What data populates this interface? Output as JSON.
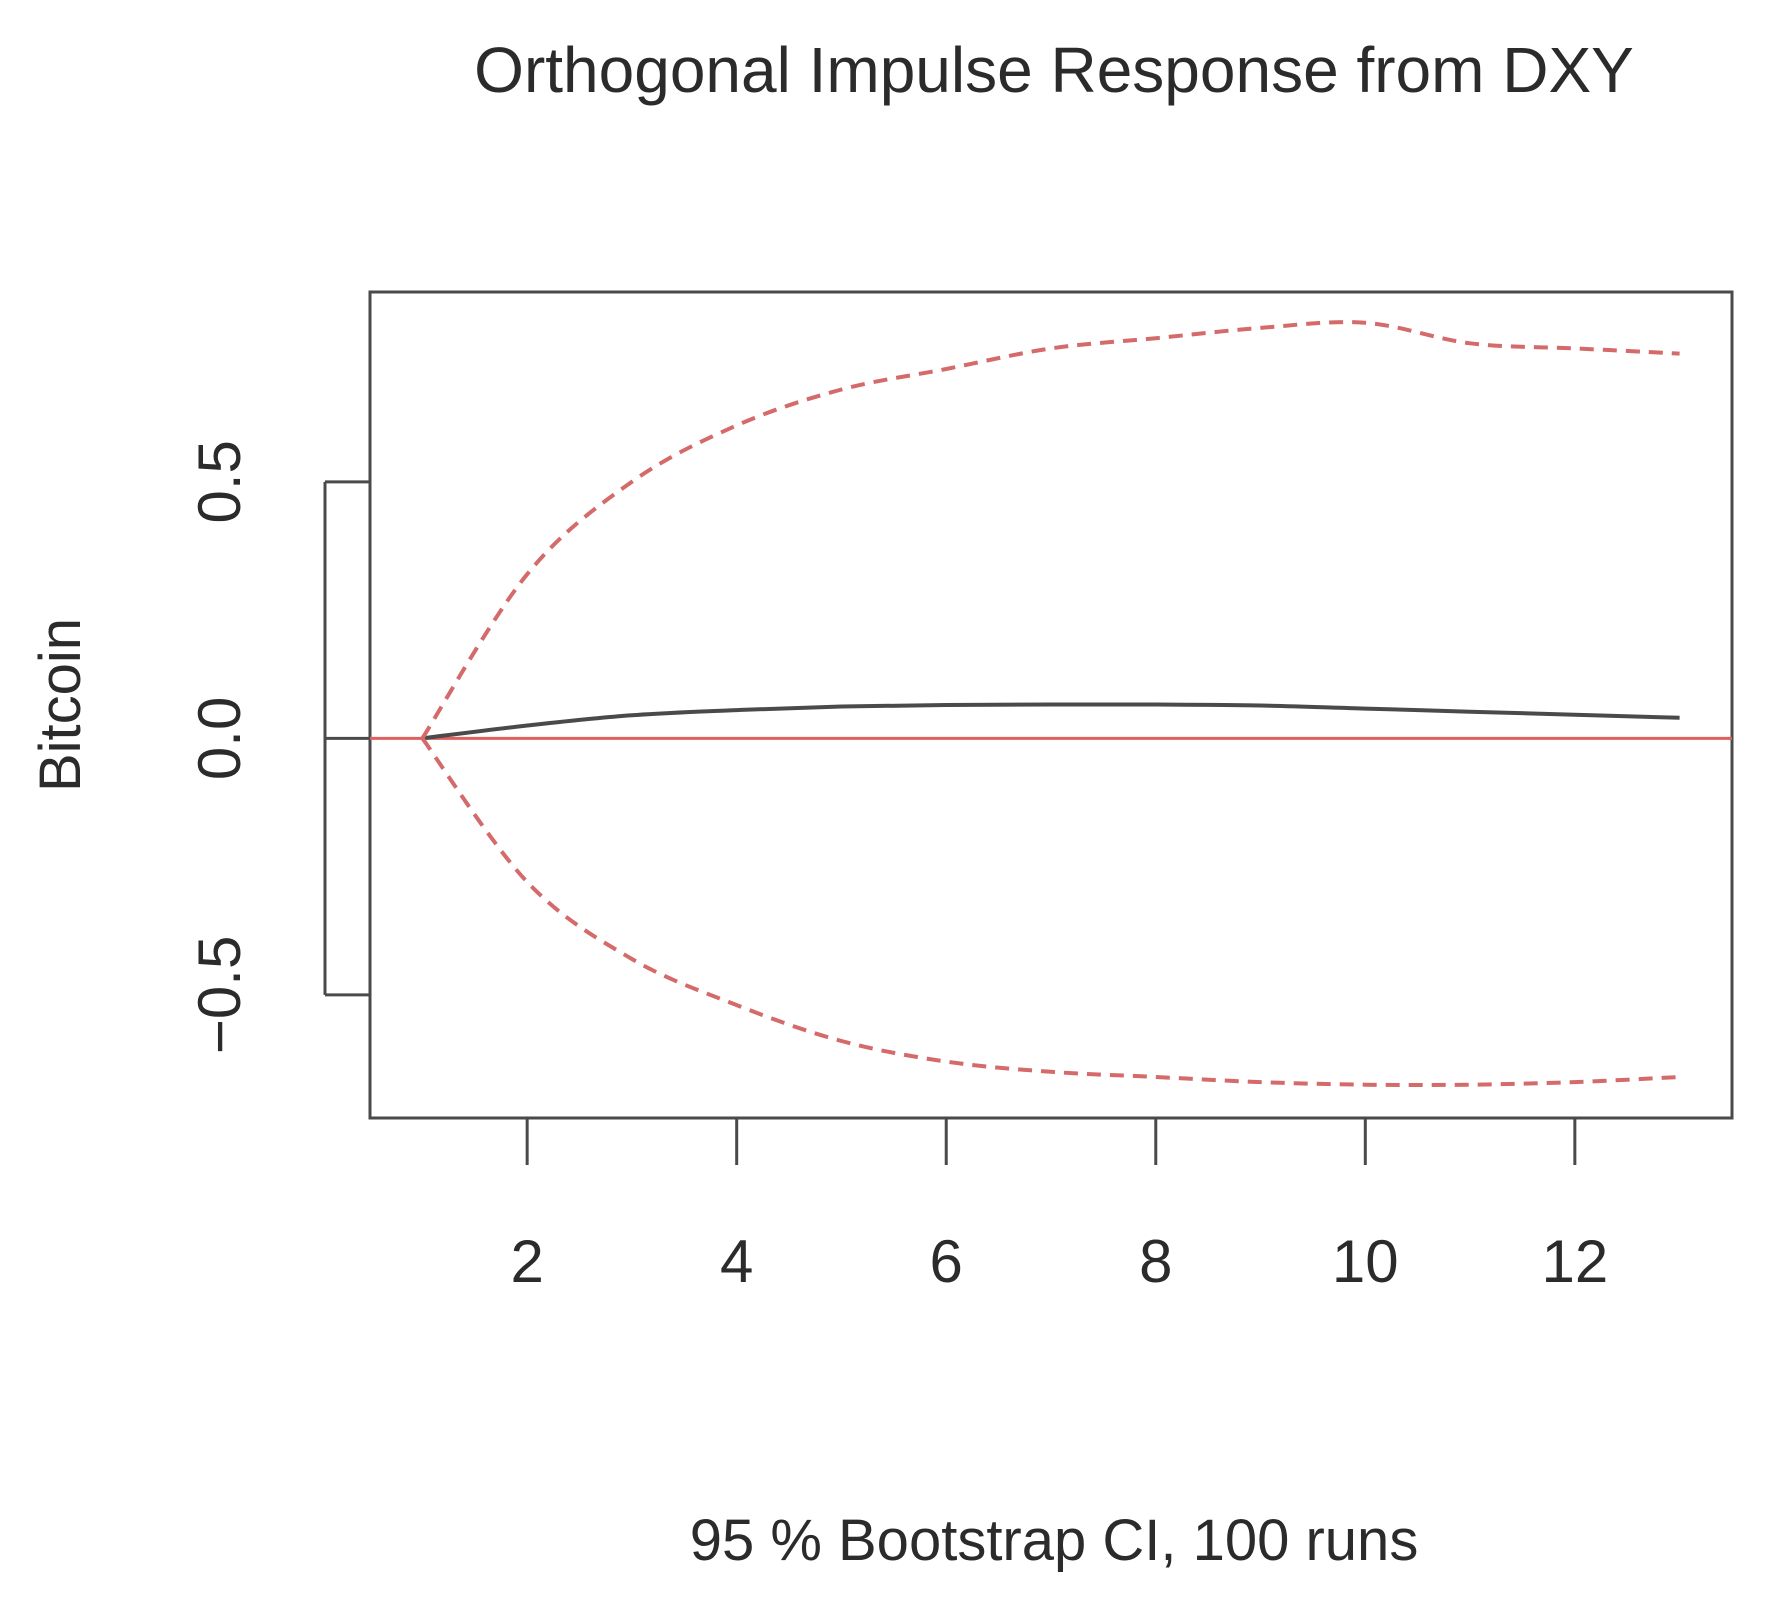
{
  "chart_data": {
    "type": "line",
    "title": "Orthogonal Impulse Response from DXY",
    "xlabel": "95 % Bootstrap CI,  100 runs",
    "ylabel": "Bitcoin",
    "xlim": [
      0.5,
      13.5
    ],
    "ylim": [
      -0.74,
      0.87
    ],
    "x_ticks": [
      2,
      4,
      6,
      8,
      10,
      12
    ],
    "x_tick_labels": [
      "2",
      "4",
      "6",
      "8",
      "10",
      "12"
    ],
    "y_ticks": [
      -0.5,
      0.0,
      0.5
    ],
    "y_tick_labels": [
      "−0.5",
      "0.0",
      "0.5"
    ],
    "grid": false,
    "x": [
      1,
      2,
      3,
      4,
      5,
      6,
      7,
      8,
      9,
      10,
      11,
      12,
      13
    ],
    "series": [
      {
        "name": "",
        "style": "solid",
        "color": "#4a4a4a",
        "values": [
          0.0,
          0.025,
          0.045,
          0.055,
          0.062,
          0.065,
          0.066,
          0.066,
          0.064,
          0.058,
          0.052,
          0.046,
          0.04
        ]
      },
      {
        "name": "",
        "style": "dashed",
        "color": "#d46a6a",
        "values": [
          0.0,
          0.32,
          0.5,
          0.61,
          0.68,
          0.72,
          0.76,
          0.78,
          0.8,
          0.81,
          0.77,
          0.76,
          0.75
        ]
      },
      {
        "name": "",
        "style": "dashed",
        "color": "#d46a6a",
        "values": [
          0.0,
          -0.28,
          -0.43,
          -0.52,
          -0.59,
          -0.63,
          -0.65,
          -0.66,
          -0.67,
          -0.675,
          -0.675,
          -0.67,
          -0.66
        ]
      }
    ],
    "hline": {
      "y": 0.0,
      "color": "#e06060"
    }
  }
}
